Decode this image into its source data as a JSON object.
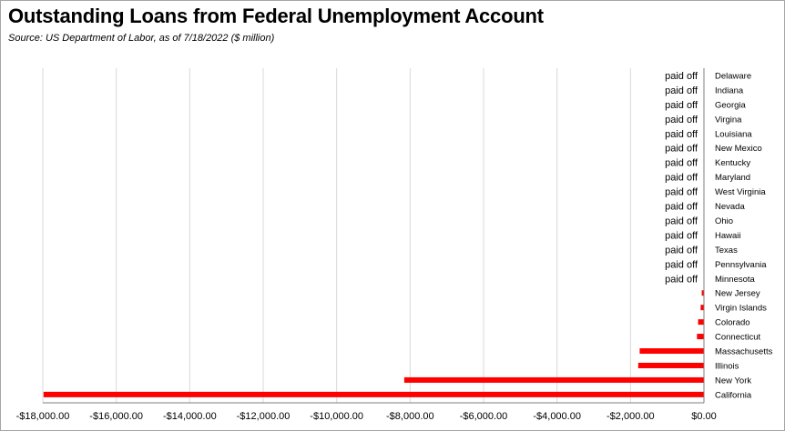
{
  "title": "Outstanding Loans from Federal Unemployment Account",
  "subtitle": "Source:  US Department of Labor, as of 7/18/2022  ($ million)",
  "colors": {
    "bar": "#ff0000",
    "grid": "#d9d9d9",
    "axis": "#7f7f7f",
    "text": "#000000"
  },
  "chart_data": {
    "type": "bar",
    "orientation": "horizontal",
    "title": "Outstanding Loans from Federal Unemployment Account",
    "subtitle": "Source:  US Department of Labor, as of 7/18/2022  ($ million)",
    "xlim": [
      -18000,
      0
    ],
    "x_ticks": [
      -18000,
      -16000,
      -14000,
      -12000,
      -10000,
      -8000,
      -6000,
      -4000,
      -2000,
      0
    ],
    "x_tick_labels": [
      "-$18,000.00",
      "-$16,000.00",
      "-$14,000.00",
      "-$12,000.00",
      "-$10,000.00",
      "-$8,000.00",
      "-$6,000.00",
      "-$4,000.00",
      "-$2,000.00",
      "$0.00"
    ],
    "grid": "vertical",
    "categories": [
      "Delaware",
      "Indiana",
      "Georgia",
      "Virgina",
      "Louisiana",
      "New Mexico",
      "Kentucky",
      "Maryland",
      "West Virginia",
      "Nevada",
      "Ohio",
      "Hawaii",
      "Texas",
      "Pennsylvania",
      "Minnesota",
      "New Jersey",
      "Virgin Islands",
      "Colorado",
      "Connecticut",
      "Massachusetts",
      "Illinois",
      "New York",
      "California"
    ],
    "values": [
      0,
      0,
      0,
      0,
      0,
      0,
      0,
      0,
      0,
      0,
      0,
      0,
      0,
      0,
      0,
      -60,
      -90,
      -160,
      -190,
      -1750,
      -1790,
      -8160,
      -17980
    ],
    "value_labels": [
      "paid off",
      "paid off",
      "paid off",
      "paid off",
      "paid off",
      "paid off",
      "paid off",
      "paid off",
      "paid off",
      "paid off",
      "paid off",
      "paid off",
      "paid off",
      "paid off",
      "paid off",
      "",
      "",
      "",
      "",
      "",
      "",
      "",
      ""
    ]
  }
}
